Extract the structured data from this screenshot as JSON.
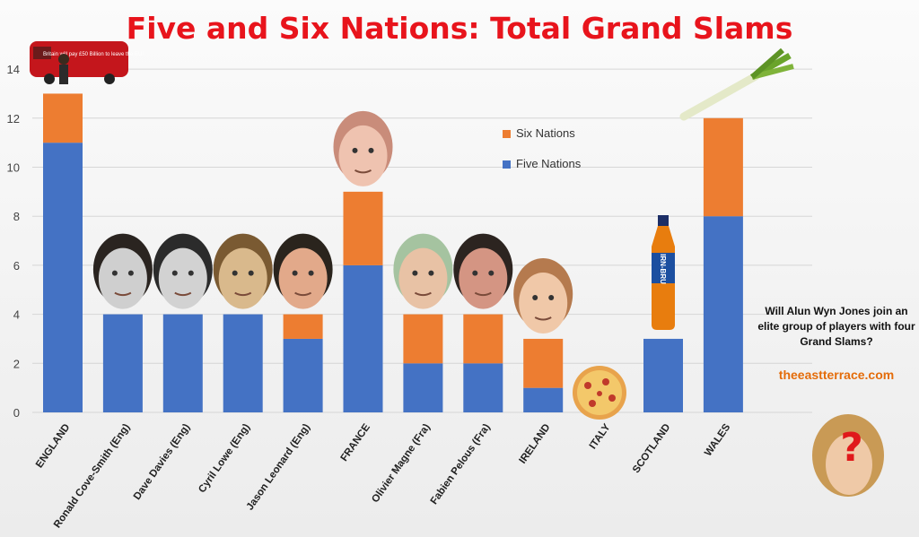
{
  "colors": {
    "five": "#4472c4",
    "six": "#ed7d31",
    "title": "#e8141c",
    "site": "#e46c0a"
  },
  "chart_data": {
    "type": "bar",
    "stacked": true,
    "title": "Five and Six Nations: Total Grand Slams",
    "categories": [
      "ENGLAND",
      "Ronald Cove-Smith (Eng)",
      "Dave Davies (Eng)",
      "Cyril Lowe (Eng)",
      "Jason Leonard (Eng)",
      "FRANCE",
      "Olivier Magne (Fra)",
      "Fabien Pelous (Fra)",
      "IRELAND",
      "ITALY",
      "SCOTLAND",
      "WALES"
    ],
    "series": [
      {
        "name": "Five Nations",
        "values": [
          11,
          4,
          4,
          4,
          3,
          6,
          2,
          2,
          1,
          0,
          3,
          8
        ]
      },
      {
        "name": "Six Nations",
        "values": [
          2,
          0,
          0,
          0,
          1,
          3,
          2,
          2,
          2,
          0,
          0,
          4
        ]
      }
    ],
    "ylim": [
      0,
      14
    ],
    "yticks": [
      0,
      2,
      4,
      6,
      8,
      10,
      12,
      14
    ],
    "grid": true,
    "legend_position": "top-center"
  },
  "annotations": {
    "question": "Will Alun Wyn Jones join an elite group of players with four Grand Slams?",
    "site": "theeastterrace.com",
    "question_mark": "?",
    "bus_text": "Britain will pay £50 Billion to leave the EU!",
    "bottle_label": "IRN-BRU"
  }
}
